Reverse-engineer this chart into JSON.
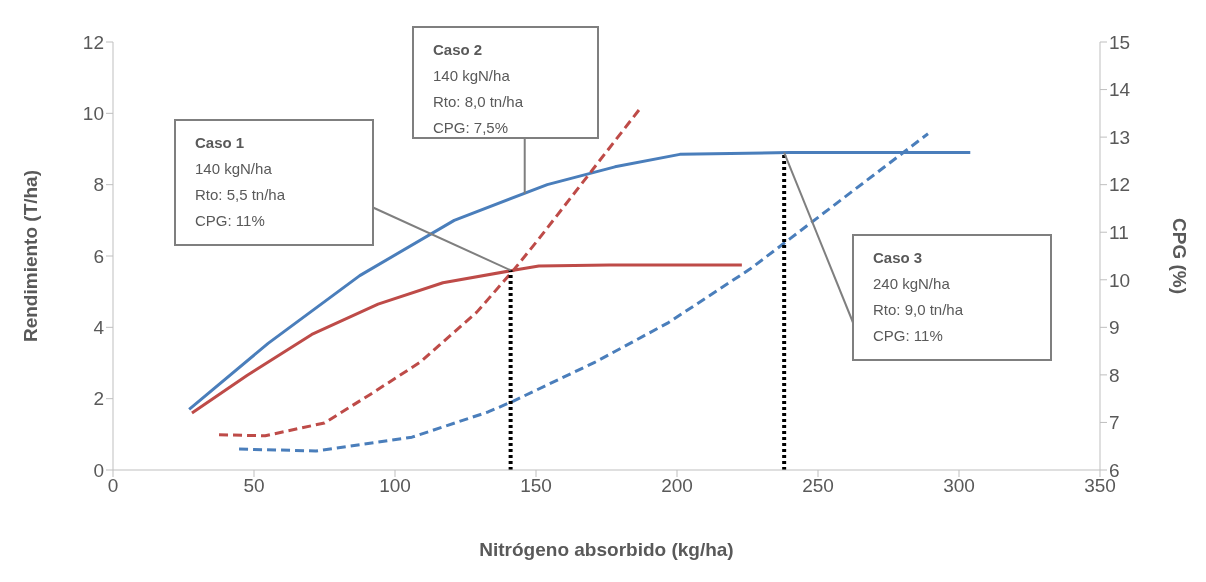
{
  "chart_data": {
    "type": "line",
    "xlabel": "Nitrógeno absorbido (kg/ha)",
    "ylabel": "Rendimiento (T/ha)",
    "y2label": "CPG (%)",
    "xlim": [
      0,
      350
    ],
    "xticks": [
      0,
      50,
      100,
      150,
      200,
      250,
      300,
      350
    ],
    "ylim": [
      0,
      12
    ],
    "yticks": [
      0,
      2,
      4,
      6,
      8,
      10,
      12
    ],
    "y2lim": [
      6,
      15
    ],
    "y2ticks": [
      6,
      7,
      8,
      9,
      10,
      11,
      12,
      13,
      14,
      15
    ],
    "line_style": "solid",
    "series": [
      {
        "color": "#4a7ebb",
        "x": [
          27,
          55,
          87.5,
          121,
          154,
          178,
          201,
          240,
          304
        ],
        "values": [
          1.7,
          3.55,
          5.45,
          7.0,
          8.0,
          8.5,
          8.85,
          8.9,
          8.9
        ]
      },
      {
        "color": "#be4b48",
        "x": [
          28,
          47.5,
          70.5,
          94,
          117,
          142,
          151,
          176,
          223
        ],
        "values": [
          1.6,
          2.65,
          3.8,
          4.65,
          5.25,
          5.6,
          5.72,
          5.75,
          5.75
        ]
      },
      {
        "color": "#be4b48",
        "axis": "y2",
        "line_style": "dashed",
        "x": [
          37.6,
          54,
          75,
          91.5,
          109,
          129,
          142,
          151,
          186.5
        ],
        "values": [
          6.74,
          6.72,
          6.99,
          7.6,
          8.27,
          9.32,
          10.2,
          10.86,
          13.57
        ]
      },
      {
        "color": "#4a7ebb",
        "axis": "y2",
        "line_style": "dashed",
        "x": [
          44.7,
          72,
          106,
          133,
          142,
          171,
          197,
          226,
          240,
          289
        ],
        "values": [
          6.44,
          6.4,
          6.69,
          7.22,
          7.45,
          8.27,
          9.1,
          10.23,
          10.86,
          13.07
        ]
      },
      {
        "color": "#000000",
        "line_style": "dotted",
        "x": [
          141,
          141
        ],
        "values": [
          0,
          5.6
        ]
      },
      {
        "color": "#000000",
        "line_style": "dotted",
        "x": [
          238,
          238
        ],
        "values": [
          0,
          8.9
        ]
      }
    ],
    "annotations": [
      "Caso 1\n140 kgN/ha\nRto: 5,5 tn/ha\nCPG: 11%",
      {
        "text": "Caso 2\n140 kgN/ha\nRto: 8,0 tn/ha\nCPG: 7,5%",
        "x": 146,
        "y": 7.75
      },
      "Caso 3\n240 kgN/ha\nRto: 9,0 tn/ha\nCPG: 11%"
    ]
  }
}
